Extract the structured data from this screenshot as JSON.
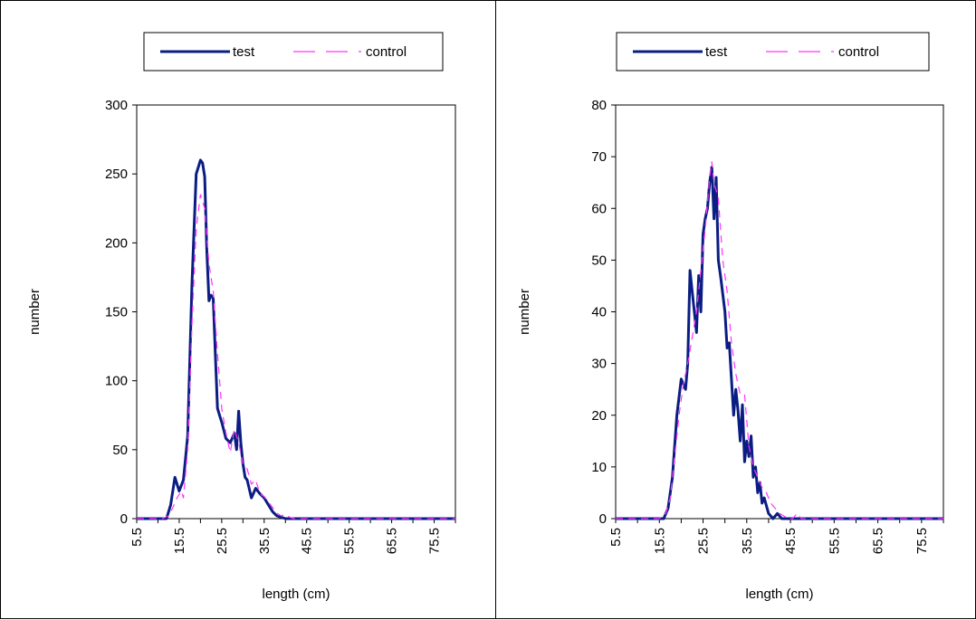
{
  "colors": {
    "test": "#0a1d82",
    "control": "#ff33ff"
  },
  "chart_data": [
    {
      "type": "line",
      "ylabel": "number",
      "xlabel": "length (cm)",
      "ylim": [
        0,
        300
      ],
      "yticks": [
        "0",
        "50",
        "100",
        "150",
        "200",
        "250",
        "300"
      ],
      "xlim": [
        5.5,
        80.5
      ],
      "xticks": [
        "5.5",
        "15.5",
        "25.5",
        "35.5",
        "45.5",
        "55.5",
        "65.5",
        "75.5"
      ],
      "legend": {
        "position": "top",
        "entries": [
          "test",
          "control"
        ]
      },
      "series": [
        {
          "name": "test",
          "x": [
            5.5,
            10.5,
            12.5,
            13.5,
            14.5,
            15.5,
            16.5,
            17.5,
            18.5,
            19.5,
            20.0,
            20.5,
            21.0,
            21.5,
            22.0,
            22.5,
            23.0,
            23.5,
            24.0,
            24.5,
            25.0,
            25.5,
            26.5,
            27.5,
            28.5,
            29.0,
            29.5,
            30.0,
            30.5,
            31.0,
            31.5,
            32.5,
            33.5,
            34.5,
            35.5,
            36.5,
            37.5,
            38.5,
            39.5,
            40.5,
            41.5,
            42.5,
            80.5
          ],
          "y": [
            0,
            0,
            0,
            10,
            30,
            20,
            28,
            60,
            170,
            250,
            255,
            260,
            258,
            248,
            195,
            158,
            162,
            160,
            120,
            80,
            75,
            70,
            58,
            55,
            62,
            50,
            78,
            55,
            40,
            30,
            28,
            15,
            22,
            18,
            15,
            10,
            5,
            2,
            1,
            0,
            0,
            0,
            0
          ]
        },
        {
          "name": "control",
          "x": [
            5.5,
            11.5,
            13.0,
            14.0,
            15.0,
            16.0,
            16.5,
            17.5,
            18.5,
            19.5,
            20.5,
            21.5,
            22.5,
            23.5,
            24.5,
            25.5,
            26.5,
            27.5,
            28.5,
            29.5,
            30.5,
            31.5,
            32.5,
            33.5,
            34.5,
            35.5,
            36.5,
            37.5,
            38.5,
            39.5,
            40.5,
            41.5,
            42.5,
            43.5,
            80.5
          ],
          "y": [
            0,
            0,
            2,
            8,
            15,
            20,
            15,
            50,
            140,
            210,
            235,
            225,
            185,
            165,
            120,
            80,
            62,
            48,
            65,
            55,
            40,
            36,
            25,
            28,
            18,
            16,
            12,
            8,
            4,
            2,
            3,
            1,
            0,
            0,
            0
          ]
        }
      ]
    },
    {
      "type": "line",
      "ylabel": "number",
      "xlabel": "length (cm)",
      "ylim": [
        0,
        80
      ],
      "yticks": [
        "0",
        "10",
        "20",
        "30",
        "40",
        "50",
        "60",
        "70",
        "80"
      ],
      "xlim": [
        5.5,
        80.5
      ],
      "xticks": [
        "5.5",
        "15.5",
        "25.5",
        "35.5",
        "45.5",
        "55.5",
        "65.5",
        "75.5"
      ],
      "legend": {
        "position": "top",
        "entries": [
          "test",
          "control"
        ]
      },
      "series": [
        {
          "name": "test",
          "x": [
            5.5,
            14.5,
            16.5,
            17.5,
            18.5,
            19.5,
            20.5,
            21.5,
            22.0,
            22.5,
            23.5,
            24.0,
            24.5,
            25.0,
            25.5,
            26.0,
            26.5,
            27.0,
            27.5,
            28.0,
            28.5,
            29.0,
            29.5,
            30.5,
            31.0,
            31.5,
            32.5,
            33.0,
            33.5,
            34.0,
            34.5,
            35.0,
            35.5,
            36.0,
            36.5,
            37.0,
            37.5,
            38.0,
            38.5,
            39.0,
            39.5,
            40.5,
            41.5,
            42.5,
            43.5,
            44.5,
            80.5
          ],
          "y": [
            0,
            0,
            0,
            2,
            8,
            20,
            27,
            25,
            30,
            48,
            40,
            36,
            47,
            40,
            55,
            58,
            60,
            65,
            68,
            58,
            66,
            50,
            47,
            40,
            33,
            34,
            20,
            25,
            21,
            15,
            22,
            11,
            15,
            12,
            16,
            8,
            10,
            5,
            7,
            3,
            4,
            1,
            0,
            1,
            0,
            0,
            0
          ]
        },
        {
          "name": "control",
          "x": [
            5.5,
            15.5,
            17.0,
            18.0,
            19.0,
            20.0,
            21.0,
            22.0,
            23.0,
            24.0,
            25.0,
            26.0,
            27.0,
            27.5,
            28.0,
            29.0,
            30.0,
            31.0,
            32.0,
            33.0,
            34.0,
            35.0,
            36.0,
            37.0,
            38.0,
            39.0,
            40.0,
            41.0,
            42.0,
            43.0,
            44.0,
            45.0,
            46.0,
            47.0,
            48.0,
            80.5
          ],
          "y": [
            0,
            0,
            1,
            4,
            12,
            20,
            26,
            30,
            35,
            40,
            48,
            56,
            66,
            69,
            65,
            62,
            50,
            44,
            34,
            28,
            24,
            24,
            14,
            10,
            8,
            6,
            5,
            3,
            2,
            1,
            0.5,
            0,
            0,
            1,
            0,
            0
          ]
        }
      ]
    }
  ]
}
